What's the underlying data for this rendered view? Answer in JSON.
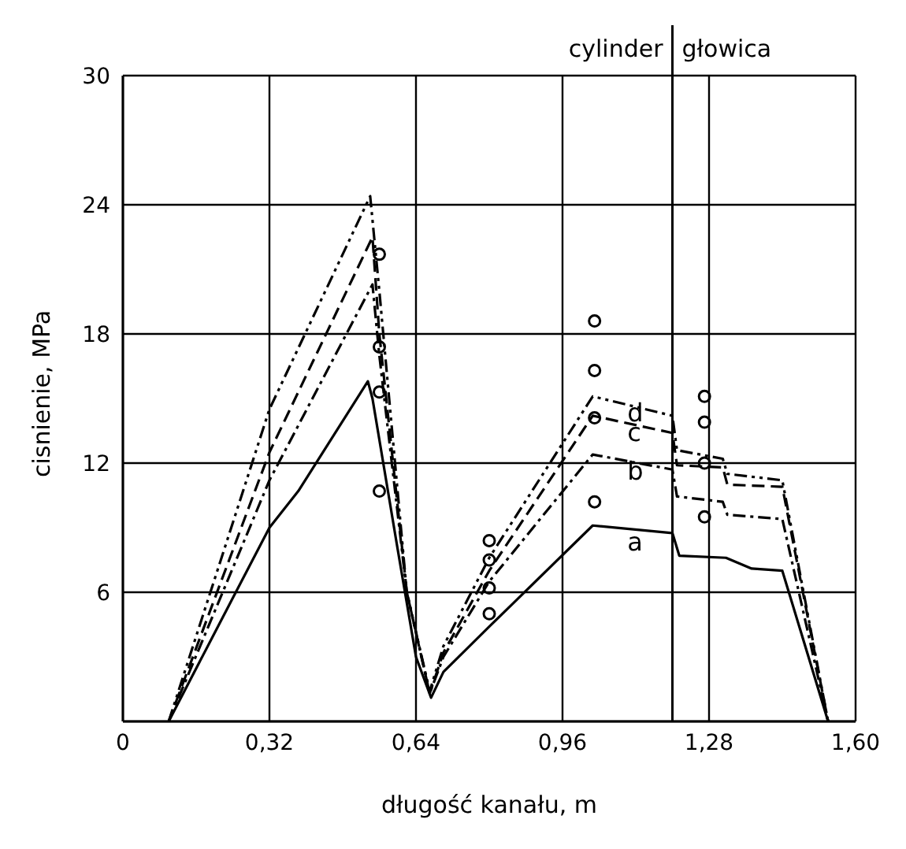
{
  "chart_data": {
    "type": "line",
    "xlabel": "długość kanału, m",
    "ylabel": "cisnienie, MPa",
    "xlim": [
      0,
      1.6
    ],
    "xticks": [
      0,
      {
        "value": 0.32,
        "label": "0,32"
      },
      {
        "value": 0.64,
        "label": "0,64"
      },
      {
        "value": 0.96,
        "label": "0,96"
      },
      {
        "value": 1.28,
        "label": "1,28"
      },
      {
        "value": 1.6,
        "label": "1,60"
      }
    ],
    "ylim": [
      0,
      30
    ],
    "yticks": [
      {
        "value": 0,
        "label": null
      },
      6,
      12,
      18,
      24,
      30
    ],
    "grid": true,
    "legend": false,
    "marker": "none",
    "series": [
      {
        "name": "a",
        "color": "#000000",
        "line_style": "solid",
        "x": [
          0.1,
          0.2,
          0.32,
          0.383,
          0.535,
          0.545,
          0.6,
          0.64,
          0.673,
          0.7,
          0.8,
          1.026,
          1.2,
          1.215,
          1.317,
          1.373,
          1.44,
          1.54
        ],
        "values": [
          0,
          4.1,
          9.0,
          10.7,
          15.8,
          15,
          8,
          3,
          1.1,
          2.3,
          4.4,
          9.1,
          8.75,
          7.7,
          7.6,
          7.1,
          7.0,
          0
        ]
      },
      {
        "name": "b",
        "color": "#000000",
        "line_style": "dashdot",
        "x": [
          0.1,
          0.32,
          0.545,
          0.56,
          0.62,
          0.67,
          0.7,
          0.8,
          1.026,
          1.2,
          1.21,
          1.31,
          1.32,
          1.44,
          1.54
        ],
        "values": [
          0,
          11.2,
          20.3,
          17,
          6,
          1.3,
          3,
          6.5,
          12.4,
          11.7,
          10.45,
          10.2,
          9.6,
          9.4,
          0
        ]
      },
      {
        "name": "c",
        "color": "#000000",
        "line_style": "dashed",
        "x": [
          0.1,
          0.32,
          0.545,
          0.56,
          0.62,
          0.67,
          0.7,
          0.8,
          1.026,
          1.2,
          1.21,
          1.31,
          1.32,
          1.44,
          1.54
        ],
        "values": [
          0,
          12.5,
          22.5,
          18,
          6,
          1.3,
          3.2,
          7,
          14.2,
          13.4,
          11.9,
          11.8,
          11.0,
          10.9,
          0
        ]
      },
      {
        "name": "d",
        "color": "#000000",
        "line_style": "dashdotdot",
        "x": [
          0.1,
          0.32,
          0.54,
          0.56,
          0.62,
          0.67,
          0.7,
          0.8,
          1.026,
          1.2,
          1.21,
          1.31,
          1.32,
          1.44,
          1.54
        ],
        "values": [
          0,
          14.5,
          24.4,
          20,
          6,
          1.4,
          3.5,
          7.6,
          15.1,
          14.2,
          12.6,
          12.2,
          11.5,
          11.2,
          0
        ]
      },
      {
        "type": "scatter",
        "color": "#000000",
        "marker": "circle",
        "x": [
          0.56,
          0.56,
          0.56,
          0.56,
          0.8,
          0.8,
          0.8,
          0.8,
          1.03,
          1.03,
          1.03,
          1.03,
          1.27,
          1.27,
          1.27,
          1.27
        ],
        "values": [
          21.7,
          17.4,
          15.3,
          10.7,
          8.4,
          7.5,
          6.2,
          5.0,
          18.6,
          16.3,
          14.1,
          10.2,
          15.1,
          13.9,
          12.0,
          9.5
        ]
      }
    ],
    "ref_lines": [
      {
        "axis": "x",
        "value": 1.2,
        "label": null,
        "color": "#000000",
        "line_style": "solid"
      }
    ],
    "annotations": [
      {
        "text": "cylinder",
        "x": 1.2,
        "y": 30
      },
      {
        "text": "głowica",
        "x": 1.2,
        "y": 30
      }
    ]
  }
}
